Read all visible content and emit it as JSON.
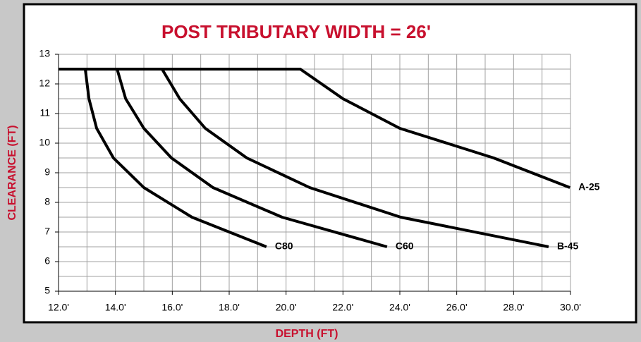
{
  "chart_data": {
    "type": "line",
    "title": "POST TRIBUTARY WIDTH = 26'",
    "x_label": "DEPTH (FT)",
    "y_label": "CLEARANCE  (FT)",
    "xlim": [
      12,
      30
    ],
    "ylim": [
      5,
      13
    ],
    "xticks": [
      {
        "value": 12,
        "label": "12.0'"
      },
      {
        "value": 14,
        "label": "14.0'"
      },
      {
        "value": 16,
        "label": "16.0'"
      },
      {
        "value": 18,
        "label": "18.0'"
      },
      {
        "value": 20,
        "label": "20.0'"
      },
      {
        "value": 22,
        "label": "22.0'"
      },
      {
        "value": 24,
        "label": "24.0'"
      },
      {
        "value": 26,
        "label": "26.0'"
      },
      {
        "value": 28,
        "label": "28.0'"
      },
      {
        "value": 30,
        "label": "30.0'"
      }
    ],
    "xminorticks": [
      13,
      15,
      17,
      19,
      21,
      23,
      25,
      27,
      29
    ],
    "yticks": [
      5,
      6,
      7,
      8,
      9,
      10,
      11,
      12,
      13
    ],
    "yminorticks": [
      5.5,
      6.5,
      7.5,
      8.5,
      9.5,
      10.5,
      11.5,
      12.5
    ],
    "grid": true,
    "series": [
      {
        "name": "C80",
        "color": "#000000",
        "x": [
          12.0,
          12.94,
          13.07,
          13.34,
          13.93,
          15.0,
          16.69,
          19.31
        ],
        "values": [
          12.5,
          12.5,
          11.5,
          10.5,
          9.5,
          8.5,
          7.5,
          6.5
        ]
      },
      {
        "name": "C60",
        "color": "#000000",
        "x": [
          12.0,
          14.06,
          14.36,
          15.0,
          15.97,
          17.43,
          19.86,
          23.55
        ],
        "values": [
          12.5,
          12.5,
          11.5,
          10.5,
          9.5,
          8.5,
          7.5,
          6.5
        ]
      },
      {
        "name": "B-45",
        "color": "#000000",
        "x": [
          12.0,
          15.64,
          16.26,
          17.16,
          18.62,
          20.83,
          24.03,
          29.23
        ],
        "values": [
          12.5,
          12.5,
          11.5,
          10.5,
          9.5,
          8.5,
          7.5,
          6.5
        ]
      },
      {
        "name": "A-25",
        "color": "#000000",
        "x": [
          12.0,
          20.5,
          22.0,
          24.0,
          27.3,
          29.98
        ],
        "values": [
          12.5,
          12.5,
          11.5,
          10.5,
          9.5,
          8.5
        ]
      }
    ]
  }
}
